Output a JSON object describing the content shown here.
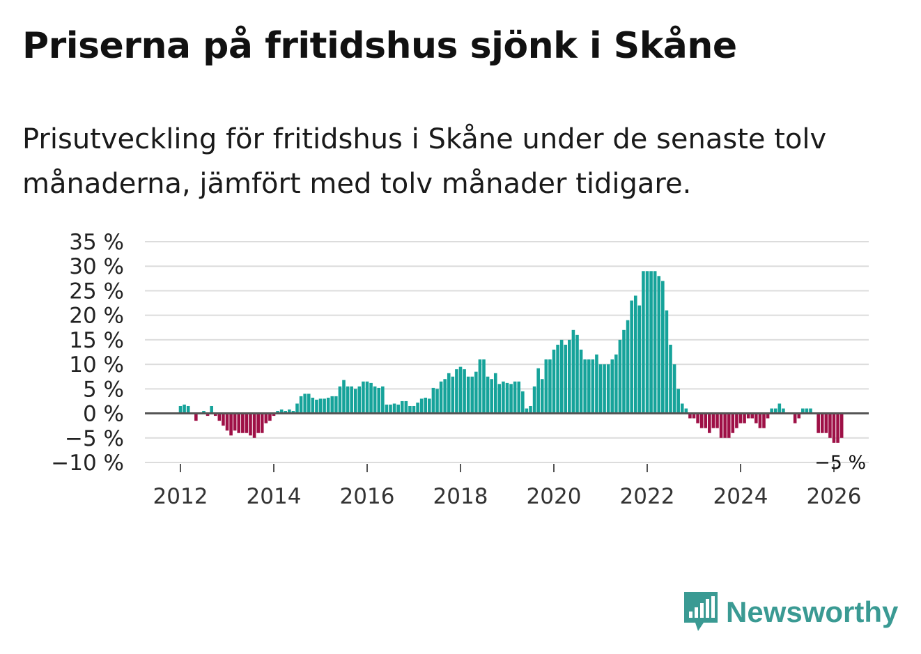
{
  "title": "Priserna på fritidshus sjönk i Skåne",
  "subtitle": "Prisutveckling för fritidshus i Skåne under de senaste tolv månaderna, jämfört med tolv månader tidigare.",
  "brand": {
    "name": "Newsworthy",
    "icon": "newsworthy-logo-icon",
    "color": "#3a9a93"
  },
  "colors": {
    "positive": "#16a39a",
    "negative": "#9e1046",
    "grid": "#dcdcdc",
    "zero": "#555555"
  },
  "chart_data": {
    "type": "bar",
    "title": "Priserna på fritidshus sjönk i Skåne",
    "xlabel": "",
    "ylabel": "",
    "ylim": [
      -10,
      35
    ],
    "y_ticks": [
      35,
      30,
      25,
      20,
      15,
      10,
      5,
      0,
      -5,
      -10
    ],
    "y_tick_labels": [
      "35 %",
      "30 %",
      "25 %",
      "20 %",
      "15 %",
      "10 %",
      "5 %",
      "0 %",
      "−5 %",
      "−10 %"
    ],
    "x_tick_years": [
      2012,
      2014,
      2016,
      2018,
      2020,
      2022,
      2024,
      2026
    ],
    "x_tick_labels": [
      "2012",
      "2014",
      "2016",
      "2018",
      "2020",
      "2022",
      "2024",
      "2026"
    ],
    "start": "2012-01",
    "frequency": "monthly",
    "series": [
      {
        "name": "Prisutveckling",
        "values": [
          1.5,
          1.8,
          1.5,
          0,
          -1.5,
          0,
          0.5,
          -0.5,
          1.5,
          -0.5,
          -1.5,
          -2.5,
          -3.5,
          -4.5,
          -3.5,
          -4.0,
          -4.0,
          -4.0,
          -4.5,
          -5.0,
          -4.0,
          -4.0,
          -2.0,
          -1.5,
          -0.5,
          0.5,
          0.8,
          0.5,
          0.8,
          0.5,
          2.0,
          3.5,
          4.0,
          4.0,
          3.2,
          2.8,
          3.0,
          3.0,
          3.2,
          3.5,
          3.5,
          5.5,
          6.8,
          5.5,
          5.5,
          5.0,
          5.5,
          6.5,
          6.5,
          6.2,
          5.5,
          5.2,
          5.5,
          1.8,
          1.8,
          2.0,
          1.8,
          2.5,
          2.5,
          1.5,
          1.5,
          2.2,
          3.0,
          3.2,
          3.0,
          5.2,
          5.0,
          6.5,
          7.0,
          8.2,
          7.5,
          9.0,
          9.5,
          9.0,
          7.5,
          7.5,
          8.5,
          11.0,
          11.0,
          7.5,
          7.0,
          8.2,
          6.0,
          6.5,
          6.2,
          6.0,
          6.5,
          6.5,
          4.5,
          1.0,
          1.5,
          5.5,
          9.2,
          7.0,
          11.0,
          11.0,
          13.0,
          14.0,
          15.0,
          14.0,
          15.0,
          17.0,
          16.0,
          13.0,
          11.0,
          11.0,
          11.0,
          12.0,
          10.0,
          10.0,
          10.0,
          11.0,
          12.0,
          15.0,
          17.0,
          19.0,
          23.0,
          24.0,
          22.0,
          29.0,
          29.0,
          29.0,
          29.0,
          28.0,
          27.0,
          21.0,
          14.0,
          10.0,
          5.0,
          2.0,
          1.0,
          -1.0,
          -1.0,
          -2.0,
          -3.0,
          -3.0,
          -4.0,
          -3.0,
          -3.0,
          -5.0,
          -5.0,
          -5.0,
          -4.0,
          -3.0,
          -2.0,
          -2.0,
          -1.0,
          -1.0,
          -2.0,
          -3.0,
          -3.0,
          -1.0,
          1.0,
          1.0,
          2.0,
          1.0,
          0,
          0,
          -2.0,
          -1.0,
          1.0,
          1.0,
          1.0,
          0,
          -4.0,
          -4.0,
          -4.0,
          -5.0,
          -6.0,
          -6.0,
          -5.0
        ],
        "last_value_label": "−5 %"
      }
    ]
  }
}
